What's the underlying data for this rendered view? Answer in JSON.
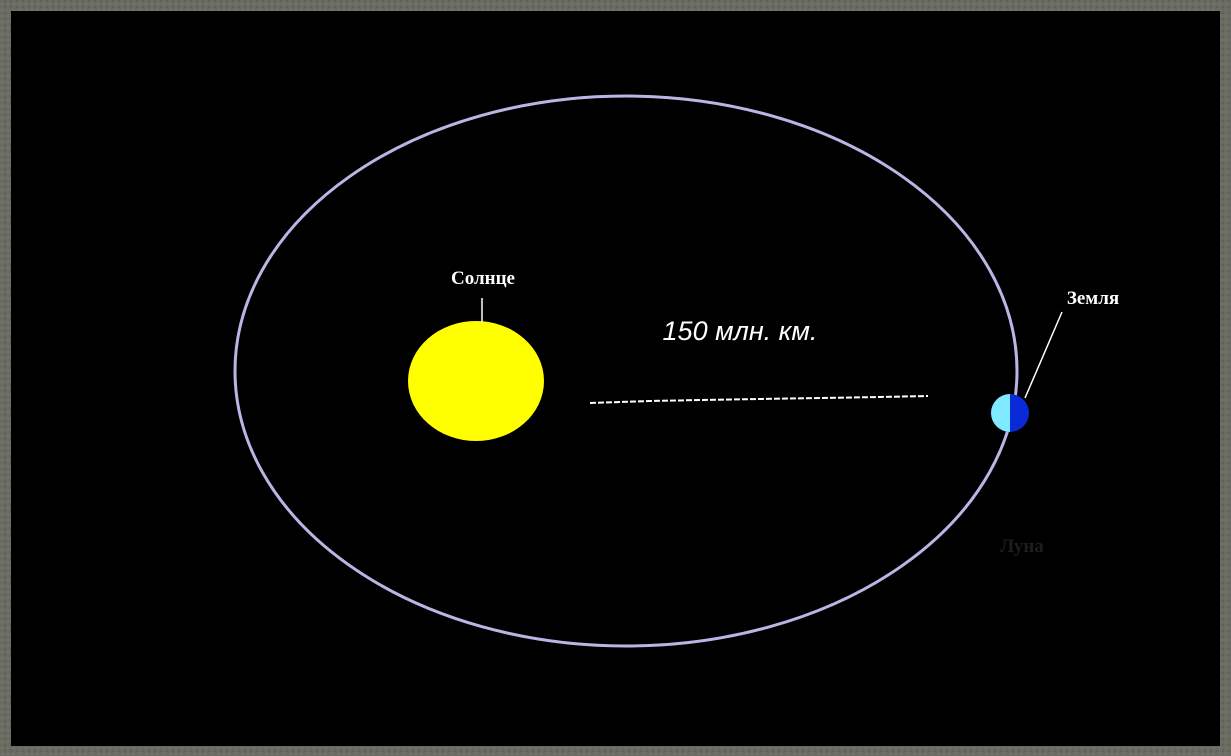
{
  "labels": {
    "sun": "Солнце",
    "distance": "150 млн. км.",
    "earth": "Земля",
    "moon": "Луна"
  }
}
